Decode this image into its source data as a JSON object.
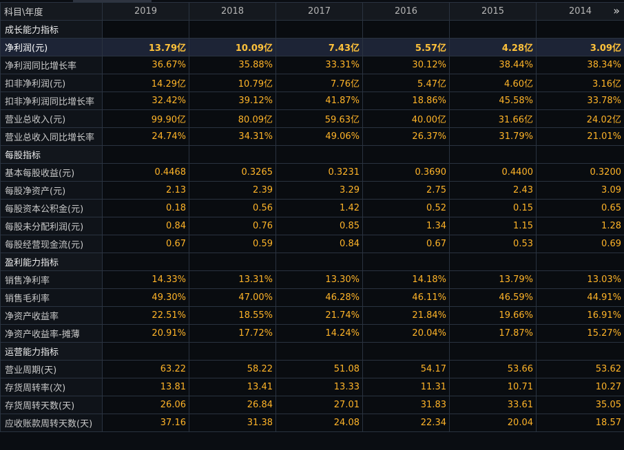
{
  "header": {
    "first": "科目\\年度",
    "years": [
      "2019",
      "2018",
      "2017",
      "2016",
      "2015",
      "2014"
    ],
    "more_icon": "»"
  },
  "rows": [
    {
      "type": "section",
      "label": "成长能力指标"
    },
    {
      "type": "row",
      "label": "净利润(元)",
      "highlight": true,
      "values": [
        "13.79亿",
        "10.09亿",
        "7.43亿",
        "5.57亿",
        "4.28亿",
        "3.09亿"
      ]
    },
    {
      "type": "row",
      "label": "净利润同比增长率",
      "values": [
        "36.67%",
        "35.88%",
        "33.31%",
        "30.12%",
        "38.44%",
        "38.34%"
      ]
    },
    {
      "type": "row",
      "label": "扣非净利润(元)",
      "values": [
        "14.29亿",
        "10.79亿",
        "7.76亿",
        "5.47亿",
        "4.60亿",
        "3.16亿"
      ]
    },
    {
      "type": "row",
      "label": "扣非净利润同比增长率",
      "values": [
        "32.42%",
        "39.12%",
        "41.87%",
        "18.86%",
        "45.58%",
        "33.78%"
      ]
    },
    {
      "type": "row",
      "label": "营业总收入(元)",
      "values": [
        "99.90亿",
        "80.09亿",
        "59.63亿",
        "40.00亿",
        "31.66亿",
        "24.02亿"
      ]
    },
    {
      "type": "row",
      "label": "营业总收入同比增长率",
      "values": [
        "24.74%",
        "34.31%",
        "49.06%",
        "26.37%",
        "31.79%",
        "21.01%"
      ]
    },
    {
      "type": "section",
      "label": "每股指标"
    },
    {
      "type": "row",
      "label": "基本每股收益(元)",
      "values": [
        "0.4468",
        "0.3265",
        "0.3231",
        "0.3690",
        "0.4400",
        "0.3200"
      ]
    },
    {
      "type": "row",
      "label": "每股净资产(元)",
      "values": [
        "2.13",
        "2.39",
        "3.29",
        "2.75",
        "2.43",
        "3.09"
      ]
    },
    {
      "type": "row",
      "label": "每股资本公积金(元)",
      "values": [
        "0.18",
        "0.56",
        "1.42",
        "0.52",
        "0.15",
        "0.65"
      ]
    },
    {
      "type": "row",
      "label": "每股未分配利润(元)",
      "values": [
        "0.84",
        "0.76",
        "0.85",
        "1.34",
        "1.15",
        "1.28"
      ]
    },
    {
      "type": "row",
      "label": "每股经营现金流(元)",
      "values": [
        "0.67",
        "0.59",
        "0.84",
        "0.67",
        "0.53",
        "0.69"
      ]
    },
    {
      "type": "section",
      "label": "盈利能力指标"
    },
    {
      "type": "row",
      "label": "销售净利率",
      "values": [
        "14.33%",
        "13.31%",
        "13.30%",
        "14.18%",
        "13.79%",
        "13.03%"
      ]
    },
    {
      "type": "row",
      "label": "销售毛利率",
      "values": [
        "49.30%",
        "47.00%",
        "46.28%",
        "46.11%",
        "46.59%",
        "44.91%"
      ]
    },
    {
      "type": "row",
      "label": "净资产收益率",
      "values": [
        "22.51%",
        "18.55%",
        "21.74%",
        "21.84%",
        "19.66%",
        "16.91%"
      ]
    },
    {
      "type": "row",
      "label": "净资产收益率-摊薄",
      "values": [
        "20.91%",
        "17.72%",
        "14.24%",
        "20.04%",
        "17.87%",
        "15.27%"
      ]
    },
    {
      "type": "section",
      "label": "运营能力指标"
    },
    {
      "type": "row",
      "label": "营业周期(天)",
      "values": [
        "63.22",
        "58.22",
        "51.08",
        "54.17",
        "53.66",
        "53.62"
      ]
    },
    {
      "type": "row",
      "label": "存货周转率(次)",
      "values": [
        "13.81",
        "13.41",
        "13.33",
        "11.31",
        "10.71",
        "10.27"
      ]
    },
    {
      "type": "row",
      "label": "存货周转天数(天)",
      "values": [
        "26.06",
        "26.84",
        "27.01",
        "31.83",
        "33.61",
        "35.05"
      ]
    },
    {
      "type": "row",
      "label": "应收账款周转天数(天)",
      "values": [
        "37.16",
        "31.38",
        "24.08",
        "22.34",
        "20.04",
        "18.57"
      ]
    }
  ]
}
